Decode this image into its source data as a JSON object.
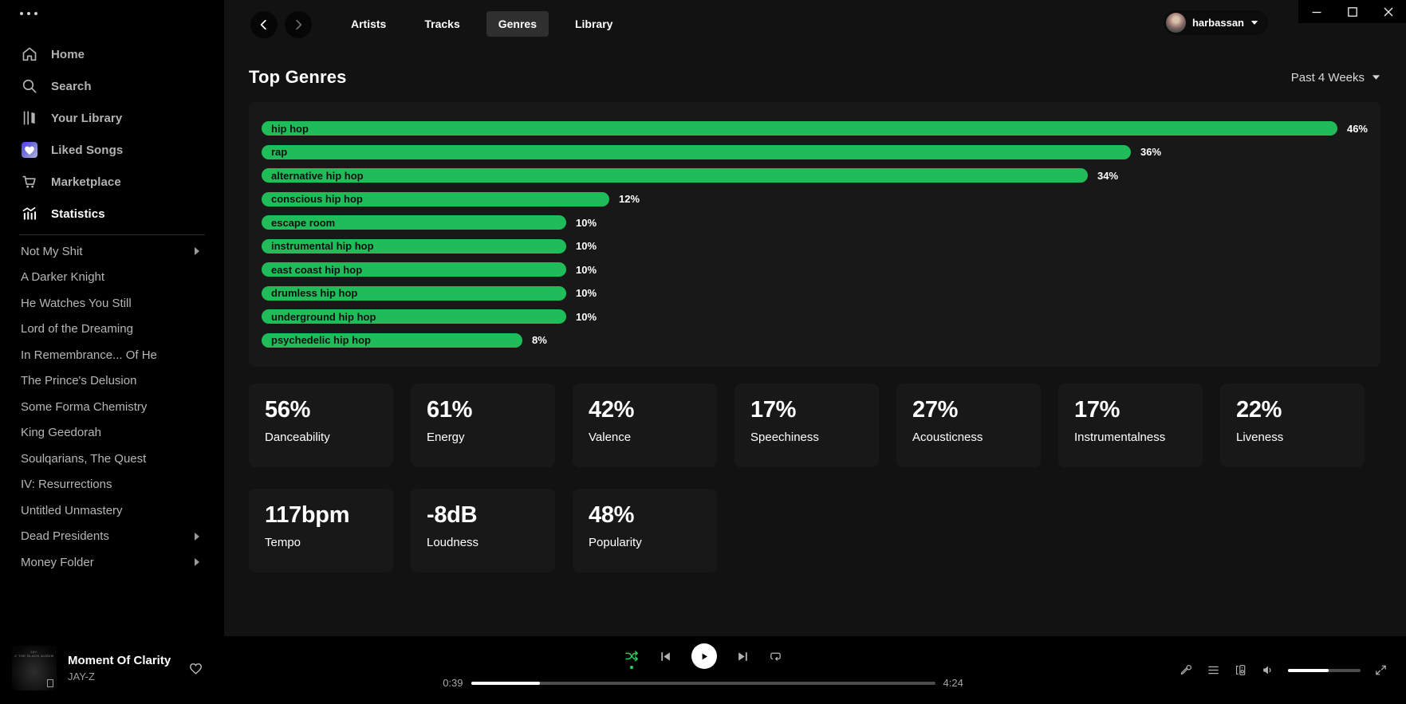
{
  "colors": {
    "page_bg": "#121212",
    "sidebar_bg": "#000000",
    "card_bg": "#181818",
    "bar_green": "#21bc5a",
    "active_green": "#1ed760",
    "muted_text": "#b3b3b3"
  },
  "sidebar": {
    "nav": [
      {
        "label": "Home",
        "icon": "home-icon"
      },
      {
        "label": "Search",
        "icon": "search-icon"
      },
      {
        "label": "Your Library",
        "icon": "library-icon"
      },
      {
        "label": "Liked Songs",
        "icon": "liked-songs-icon"
      },
      {
        "label": "Marketplace",
        "icon": "cart-icon"
      },
      {
        "label": "Statistics",
        "icon": "statistics-icon",
        "active": true
      }
    ],
    "playlists": [
      {
        "label": "Not My Shit",
        "expandable": true
      },
      {
        "label": "A Darker Knight"
      },
      {
        "label": "He Watches You Still"
      },
      {
        "label": "Lord of the Dreaming"
      },
      {
        "label": "In Remembrance... Of He"
      },
      {
        "label": "The Prince's Delusion"
      },
      {
        "label": "Some Forma Chemistry"
      },
      {
        "label": "King Geedorah"
      },
      {
        "label": "Soulqarians, The Quest"
      },
      {
        "label": "IV: Resurrections"
      },
      {
        "label": "Untitled Unmastery"
      },
      {
        "label": "Dead Presidents",
        "expandable": true
      },
      {
        "label": "Money Folder",
        "expandable": true
      }
    ]
  },
  "topbar": {
    "tabs": [
      {
        "label": "Artists"
      },
      {
        "label": "Tracks"
      },
      {
        "label": "Genres",
        "active": true
      },
      {
        "label": "Library"
      }
    ],
    "user_name": "harbassan"
  },
  "page": {
    "title": "Top Genres",
    "time_range": "Past 4 Weeks"
  },
  "chart_data": {
    "type": "bar",
    "orientation": "horizontal",
    "title": "Top Genres",
    "unit": "%",
    "categories": [
      "hip hop",
      "rap",
      "alternative hip hop",
      "conscious hip hop",
      "escape room",
      "instrumental hip hop",
      "east coast hip hop",
      "drumless hip hop",
      "underground hip hop",
      "psychedelic hip hop"
    ],
    "values": [
      46,
      36,
      34,
      12,
      10,
      10,
      10,
      10,
      10,
      8
    ],
    "bar_color": "#21bc5a",
    "value_label_position": "right-of-bar",
    "xlim": [
      0,
      46
    ],
    "grid": false,
    "legend": false
  },
  "stats": [
    {
      "value": "56%",
      "label": "Danceability"
    },
    {
      "value": "61%",
      "label": "Energy"
    },
    {
      "value": "42%",
      "label": "Valence"
    },
    {
      "value": "17%",
      "label": "Speechiness"
    },
    {
      "value": "27%",
      "label": "Acousticness"
    },
    {
      "value": "17%",
      "label": "Instrumentalness"
    },
    {
      "value": "22%",
      "label": "Liveness"
    },
    {
      "value": "117bpm",
      "label": "Tempo"
    },
    {
      "value": "-8dB",
      "label": "Loudness"
    },
    {
      "value": "48%",
      "label": "Popularity"
    }
  ],
  "player": {
    "track_title": "Moment Of Clarity",
    "artist": "JAY-Z",
    "elapsed": "0:39",
    "duration": "4:24",
    "progress_pct": 14.8,
    "volume_pct": 56,
    "shuffle_active": true
  }
}
